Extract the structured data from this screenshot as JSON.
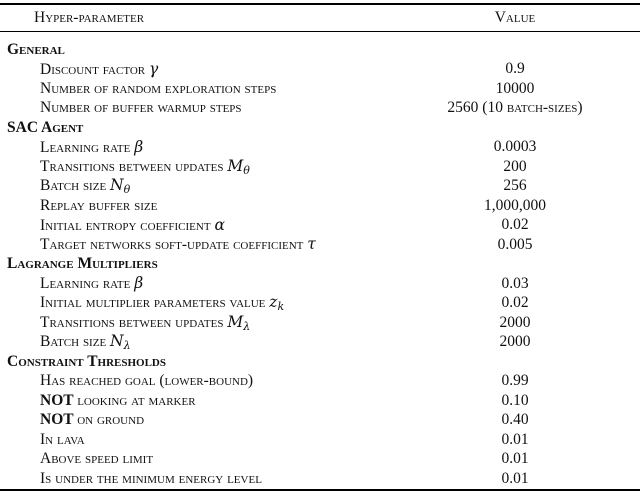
{
  "table": {
    "headers": {
      "param": "Hyper-parameter",
      "value": "Value"
    },
    "sections": [
      {
        "id": "general",
        "title": "General",
        "rows": [
          {
            "parts": [
              {
                "t": "Discount factor ",
                "s": "sc"
              },
              {
                "t": "γ",
                "s": "m"
              }
            ],
            "value": "0.9"
          },
          {
            "parts": [
              {
                "t": "Number of random exploration steps",
                "s": "sc"
              }
            ],
            "value": "10000"
          },
          {
            "parts": [
              {
                "t": "Number of buffer warmup steps",
                "s": "sc"
              }
            ],
            "value": "2560 (10 batch-sizes)"
          }
        ]
      },
      {
        "id": "sac-agent",
        "title": "SAC Agent",
        "rows": [
          {
            "parts": [
              {
                "t": "Learning rate ",
                "s": "sc"
              },
              {
                "t": "β",
                "s": "m"
              }
            ],
            "value": "0.0003"
          },
          {
            "parts": [
              {
                "t": "Transitions between updates ",
                "s": "sc"
              },
              {
                "t": "M",
                "s": "m"
              },
              {
                "t": "θ",
                "s": "u"
              }
            ],
            "value": "200"
          },
          {
            "parts": [
              {
                "t": "Batch size ",
                "s": "sc"
              },
              {
                "t": "N",
                "s": "m"
              },
              {
                "t": "θ",
                "s": "u"
              }
            ],
            "value": "256"
          },
          {
            "parts": [
              {
                "t": "Replay buffer size",
                "s": "sc"
              }
            ],
            "value": "1,000,000"
          },
          {
            "parts": [
              {
                "t": "Initial entropy coefficient ",
                "s": "sc"
              },
              {
                "t": "α",
                "s": "m"
              }
            ],
            "value": "0.02"
          },
          {
            "parts": [
              {
                "t": "Target networks soft-update coefficient ",
                "s": "sc"
              },
              {
                "t": "τ",
                "s": "m"
              }
            ],
            "value": "0.005"
          }
        ]
      },
      {
        "id": "lagrange-multipliers",
        "title": "Lagrange Multipliers",
        "rows": [
          {
            "parts": [
              {
                "t": "Learning rate ",
                "s": "sc"
              },
              {
                "t": "β",
                "s": "m"
              }
            ],
            "value": "0.03"
          },
          {
            "parts": [
              {
                "t": "Initial multiplier parameters value ",
                "s": "sc"
              },
              {
                "t": "z",
                "s": "m"
              },
              {
                "t": "k",
                "s": "u"
              }
            ],
            "value": "0.02"
          },
          {
            "parts": [
              {
                "t": "Transitions between updates ",
                "s": "sc"
              },
              {
                "t": "M",
                "s": "m"
              },
              {
                "t": "λ",
                "s": "u"
              }
            ],
            "value": "2000"
          },
          {
            "parts": [
              {
                "t": "Batch size ",
                "s": "sc"
              },
              {
                "t": "N",
                "s": "m"
              },
              {
                "t": "λ",
                "s": "u"
              }
            ],
            "value": "2000"
          }
        ]
      },
      {
        "id": "constraint-thresholds",
        "title": "Constraint Thresholds",
        "rows": [
          {
            "parts": [
              {
                "t": "Has reached goal (lower-bound)",
                "s": "sc"
              }
            ],
            "value": "0.99"
          },
          {
            "parts": [
              {
                "t": "NOT ",
                "s": "b"
              },
              {
                "t": "looking at marker",
                "s": "sc"
              }
            ],
            "value": "0.10"
          },
          {
            "parts": [
              {
                "t": "NOT ",
                "s": "b"
              },
              {
                "t": "on ground",
                "s": "sc"
              }
            ],
            "value": "0.40"
          },
          {
            "parts": [
              {
                "t": "In lava",
                "s": "sc"
              }
            ],
            "value": "0.01"
          },
          {
            "parts": [
              {
                "t": "Above speed limit",
                "s": "sc"
              }
            ],
            "value": "0.01"
          },
          {
            "parts": [
              {
                "t": "Is under the minimum energy level",
                "s": "sc"
              }
            ],
            "value": "0.01"
          }
        ]
      }
    ]
  }
}
